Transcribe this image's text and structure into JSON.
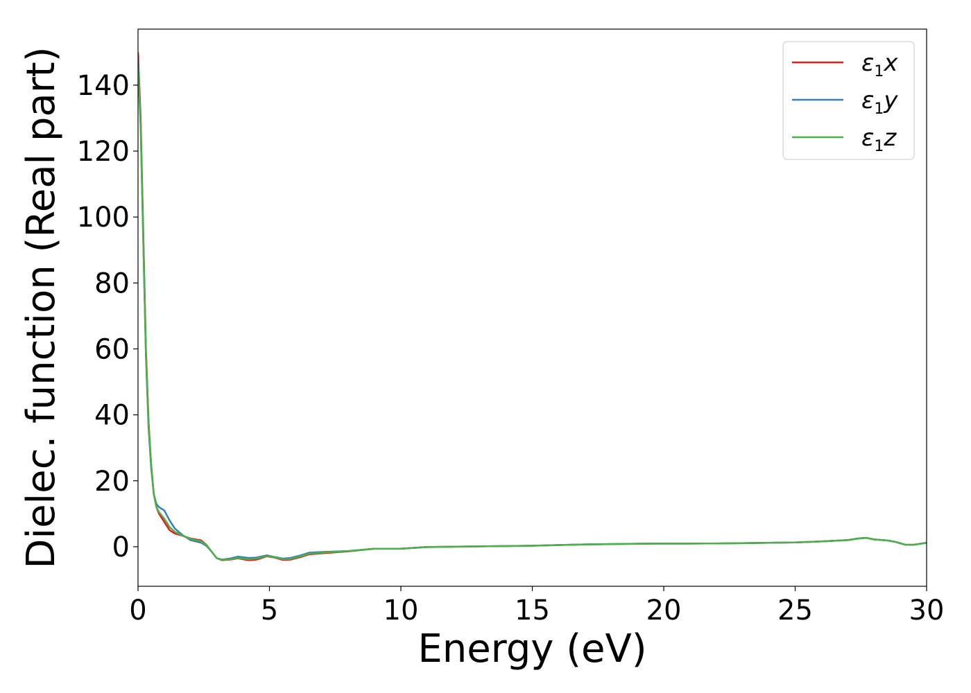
{
  "chart_data": {
    "type": "line",
    "title": "",
    "xlabel": "Energy (eV)",
    "ylabel": "Dielec. function (Real part)",
    "xlim": [
      0,
      30
    ],
    "ylim": [
      -12,
      157
    ],
    "xticks": [
      0,
      5,
      10,
      15,
      20,
      25,
      30
    ],
    "yticks": [
      0,
      20,
      40,
      60,
      80,
      100,
      120,
      140
    ],
    "grid": false,
    "legend_position": "top-right",
    "series": [
      {
        "name": "ε1x",
        "legend_symbol": "ε",
        "legend_sub": "1",
        "legend_var": "x",
        "color": "#e41a1c",
        "points": [
          [
            0,
            150
          ],
          [
            0.1,
            130
          ],
          [
            0.2,
            95
          ],
          [
            0.3,
            60
          ],
          [
            0.4,
            38
          ],
          [
            0.5,
            25
          ],
          [
            0.6,
            16
          ],
          [
            0.7,
            12
          ],
          [
            0.8,
            10
          ],
          [
            1.0,
            7.5
          ],
          [
            1.2,
            5
          ],
          [
            1.4,
            4
          ],
          [
            1.7,
            3.3
          ],
          [
            2.0,
            2.5
          ],
          [
            2.4,
            1.9
          ],
          [
            2.6,
            0.6
          ],
          [
            2.8,
            -1.5
          ],
          [
            3.0,
            -3.5
          ],
          [
            3.2,
            -4.1
          ],
          [
            3.5,
            -3.9
          ],
          [
            3.8,
            -3.5
          ],
          [
            4.2,
            -4.1
          ],
          [
            4.5,
            -3.9
          ],
          [
            4.9,
            -2.9
          ],
          [
            5.2,
            -3.3
          ],
          [
            5.5,
            -4.0
          ],
          [
            5.8,
            -3.9
          ],
          [
            6.2,
            -3.1
          ],
          [
            6.5,
            -2.3
          ],
          [
            7.0,
            -2.0
          ],
          [
            8.0,
            -1.4
          ],
          [
            9.0,
            -0.6
          ],
          [
            9.5,
            -0.6
          ],
          [
            10,
            -0.6
          ],
          [
            11,
            -0.1
          ],
          [
            12,
            0.0
          ],
          [
            13,
            0.1
          ],
          [
            14,
            0.2
          ],
          [
            15,
            0.3
          ],
          [
            16,
            0.5
          ],
          [
            17,
            0.7
          ],
          [
            18,
            0.8
          ],
          [
            19,
            0.9
          ],
          [
            20,
            0.95
          ],
          [
            21,
            0.95
          ],
          [
            22,
            1.0
          ],
          [
            23,
            1.1
          ],
          [
            24,
            1.2
          ],
          [
            25,
            1.3
          ],
          [
            26,
            1.6
          ],
          [
            27,
            2.0
          ],
          [
            27.4,
            2.5
          ],
          [
            27.7,
            2.7
          ],
          [
            28.0,
            2.2
          ],
          [
            28.5,
            1.9
          ],
          [
            28.8,
            1.5
          ],
          [
            29.2,
            0.6
          ],
          [
            29.5,
            0.6
          ],
          [
            30,
            1.2
          ]
        ]
      },
      {
        "name": "ε1y",
        "legend_symbol": "ε",
        "legend_sub": "1",
        "legend_var": "y",
        "color": "#377eb8",
        "points": [
          [
            0,
            148
          ],
          [
            0.1,
            128
          ],
          [
            0.2,
            93
          ],
          [
            0.3,
            58
          ],
          [
            0.4,
            36
          ],
          [
            0.5,
            24
          ],
          [
            0.6,
            16
          ],
          [
            0.7,
            13
          ],
          [
            0.8,
            12
          ],
          [
            1.0,
            11
          ],
          [
            1.2,
            8
          ],
          [
            1.4,
            5.5
          ],
          [
            1.7,
            3.5
          ],
          [
            2.0,
            2.0
          ],
          [
            2.4,
            1.2
          ],
          [
            2.6,
            0.3
          ],
          [
            2.8,
            -1.5
          ],
          [
            3.0,
            -3.5
          ],
          [
            3.2,
            -3.9
          ],
          [
            3.5,
            -3.6
          ],
          [
            3.8,
            -3.0
          ],
          [
            4.2,
            -3.4
          ],
          [
            4.5,
            -3.3
          ],
          [
            4.9,
            -2.6
          ],
          [
            5.2,
            -3.1
          ],
          [
            5.5,
            -3.6
          ],
          [
            5.8,
            -3.4
          ],
          [
            6.2,
            -2.6
          ],
          [
            6.5,
            -1.8
          ],
          [
            7.0,
            -1.6
          ],
          [
            8.0,
            -1.3
          ],
          [
            9.0,
            -0.6
          ],
          [
            9.5,
            -0.6
          ],
          [
            10,
            -0.6
          ],
          [
            11,
            -0.1
          ],
          [
            12,
            0.0
          ],
          [
            13,
            0.1
          ],
          [
            14,
            0.2
          ],
          [
            15,
            0.3
          ],
          [
            16,
            0.5
          ],
          [
            17,
            0.7
          ],
          [
            18,
            0.8
          ],
          [
            19,
            0.9
          ],
          [
            20,
            0.95
          ],
          [
            21,
            0.95
          ],
          [
            22,
            1.0
          ],
          [
            23,
            1.1
          ],
          [
            24,
            1.2
          ],
          [
            25,
            1.3
          ],
          [
            26,
            1.6
          ],
          [
            27,
            2.0
          ],
          [
            27.4,
            2.5
          ],
          [
            27.7,
            2.7
          ],
          [
            28.0,
            2.2
          ],
          [
            28.5,
            1.9
          ],
          [
            28.8,
            1.5
          ],
          [
            29.2,
            0.6
          ],
          [
            29.5,
            0.6
          ],
          [
            30,
            1.2
          ]
        ]
      },
      {
        "name": "ε1z",
        "legend_symbol": "ε",
        "legend_sub": "1",
        "legend_var": "z",
        "color": "#4daf4a",
        "points": [
          [
            0,
            146
          ],
          [
            0.1,
            127
          ],
          [
            0.2,
            92
          ],
          [
            0.3,
            58
          ],
          [
            0.4,
            37
          ],
          [
            0.5,
            25
          ],
          [
            0.6,
            16
          ],
          [
            0.7,
            12
          ],
          [
            0.8,
            10.5
          ],
          [
            1.0,
            8.5
          ],
          [
            1.2,
            6
          ],
          [
            1.4,
            4.5
          ],
          [
            1.7,
            3.3
          ],
          [
            2.0,
            2.4
          ],
          [
            2.4,
            1.6
          ],
          [
            2.6,
            0.5
          ],
          [
            2.8,
            -1.5
          ],
          [
            3.0,
            -3.5
          ],
          [
            3.2,
            -4.0
          ],
          [
            3.5,
            -3.8
          ],
          [
            3.8,
            -3.4
          ],
          [
            4.2,
            -3.8
          ],
          [
            4.5,
            -3.6
          ],
          [
            4.9,
            -2.8
          ],
          [
            5.2,
            -3.2
          ],
          [
            5.5,
            -3.8
          ],
          [
            5.8,
            -3.7
          ],
          [
            6.2,
            -2.9
          ],
          [
            6.5,
            -2.1
          ],
          [
            7.0,
            -1.8
          ],
          [
            8.0,
            -1.3
          ],
          [
            9.0,
            -0.6
          ],
          [
            9.5,
            -0.6
          ],
          [
            10,
            -0.6
          ],
          [
            11,
            -0.1
          ],
          [
            12,
            0.0
          ],
          [
            13,
            0.1
          ],
          [
            14,
            0.2
          ],
          [
            15,
            0.3
          ],
          [
            16,
            0.5
          ],
          [
            17,
            0.7
          ],
          [
            18,
            0.8
          ],
          [
            19,
            0.9
          ],
          [
            20,
            0.95
          ],
          [
            21,
            0.95
          ],
          [
            22,
            1.0
          ],
          [
            23,
            1.1
          ],
          [
            24,
            1.2
          ],
          [
            25,
            1.3
          ],
          [
            26,
            1.6
          ],
          [
            27,
            2.0
          ],
          [
            27.4,
            2.5
          ],
          [
            27.7,
            2.7
          ],
          [
            28.0,
            2.2
          ],
          [
            28.5,
            1.9
          ],
          [
            28.8,
            1.5
          ],
          [
            29.2,
            0.6
          ],
          [
            29.5,
            0.6
          ],
          [
            30,
            1.2
          ]
        ]
      }
    ]
  }
}
